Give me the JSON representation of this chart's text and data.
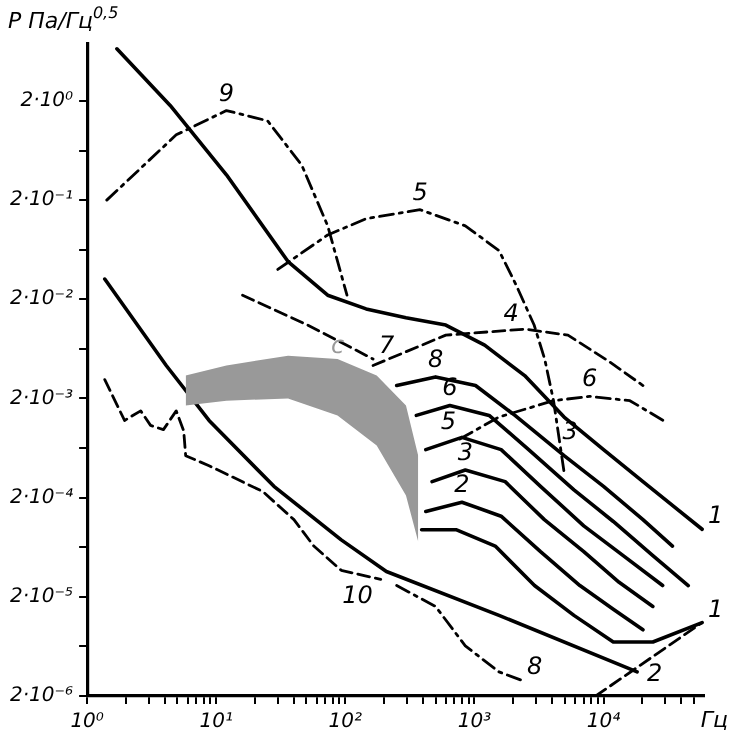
{
  "chart_data": {
    "type": "line",
    "xlabel": "Гц",
    "ylabel": "Р Па/Гц$^{0,5}$",
    "log": "xy",
    "xlim": [
      1,
      60000
    ],
    "ylim": [
      2e-06,
      7.5
    ],
    "xticks": [
      {
        "value": 1,
        "label": "10⁰"
      },
      {
        "value": 2,
        "label": null
      },
      {
        "value": 3,
        "label": null
      },
      {
        "value": 4,
        "label": null
      },
      {
        "value": 5,
        "label": null
      },
      {
        "value": 6,
        "label": null
      },
      {
        "value": 7,
        "label": null
      },
      {
        "value": 8,
        "label": null
      },
      {
        "value": 9,
        "label": null
      },
      {
        "value": 10,
        "label": "10¹"
      },
      {
        "value": 20,
        "label": null
      },
      {
        "value": 30,
        "label": null
      },
      {
        "value": 40,
        "label": null
      },
      {
        "value": 50,
        "label": null
      },
      {
        "value": 60,
        "label": null
      },
      {
        "value": 70,
        "label": null
      },
      {
        "value": 80,
        "label": null
      },
      {
        "value": 90,
        "label": null
      },
      {
        "value": 100,
        "label": "10²"
      },
      {
        "value": 200,
        "label": null
      },
      {
        "value": 300,
        "label": null
      },
      {
        "value": 400,
        "label": null
      },
      {
        "value": 500,
        "label": null
      },
      {
        "value": 600,
        "label": null
      },
      {
        "value": 700,
        "label": null
      },
      {
        "value": 800,
        "label": null
      },
      {
        "value": 900,
        "label": null
      },
      {
        "value": 1000,
        "label": "10³"
      },
      {
        "value": 2000,
        "label": null
      },
      {
        "value": 3000,
        "label": null
      },
      {
        "value": 4000,
        "label": null
      },
      {
        "value": 5000,
        "label": null
      },
      {
        "value": 6000,
        "label": null
      },
      {
        "value": 7000,
        "label": null
      },
      {
        "value": 8000,
        "label": null
      },
      {
        "value": 9000,
        "label": null
      },
      {
        "value": 10000,
        "label": "10⁴"
      },
      {
        "value": 20000,
        "label": null
      },
      {
        "value": 30000,
        "label": null
      },
      {
        "value": 40000,
        "label": null
      },
      {
        "value": 50000,
        "label": null
      }
    ],
    "yticks": [
      {
        "value": 2,
        "label": "2·10⁰"
      },
      {
        "value": 0.632,
        "label": null
      },
      {
        "value": 0.2,
        "label": "2·10⁻¹"
      },
      {
        "value": 0.0632,
        "label": null
      },
      {
        "value": 0.02,
        "label": "2·10⁻²"
      },
      {
        "value": 0.00632,
        "label": null
      },
      {
        "value": 0.002,
        "label": "2·10⁻³"
      },
      {
        "value": 0.000632,
        "label": null
      },
      {
        "value": 0.0002,
        "label": "2·10⁻⁴"
      },
      {
        "value": 6.32e-05,
        "label": null
      },
      {
        "value": 2e-05,
        "label": "2·10⁻⁵"
      },
      {
        "value": 6.32e-06,
        "label": null
      },
      {
        "value": 2e-06,
        "label": "2·10⁻⁶"
      }
    ],
    "annotations": [
      {
        "text": "3",
        "x": 5500,
        "y": 0.00093
      }
    ],
    "series": [
      {
        "name": "1",
        "color": "#000000",
        "line_style": "solid",
        "x": [
          1.7,
          4.4,
          12,
          36,
          73,
          145,
          295,
          600,
          1200,
          2450,
          4950,
          10000,
          20200,
          58000
        ],
        "values": [
          6.7,
          1.8,
          0.36,
          0.048,
          0.022,
          0.016,
          0.013,
          0.011,
          0.0069,
          0.0034,
          0.0013,
          0.00061,
          0.00029,
          9.6e-05
        ]
      },
      {
        "name": "9",
        "color": "#000000",
        "line_style": "dashdot",
        "x": [
          1.42,
          4.9,
          12,
          25,
          46,
          73,
          103
        ],
        "values": [
          0.2,
          0.91,
          1.6,
          1.26,
          0.45,
          0.11,
          0.022
        ]
      },
      {
        "name": "5",
        "color": "#000000",
        "line_style": "dashdot",
        "x": [
          30,
          73,
          145,
          380,
          850,
          1550,
          2100,
          2900,
          3500,
          4100,
          4950
        ],
        "values": [
          0.04,
          0.089,
          0.13,
          0.16,
          0.11,
          0.062,
          0.028,
          0.011,
          0.005,
          0.0019,
          0.00036
        ]
      },
      {
        "name": "7",
        "color": "#000000",
        "line_style": "dashed",
        "x": [
          16,
          51,
          164
        ],
        "values": [
          0.022,
          0.011,
          0.005
        ]
      },
      {
        "name": "4",
        "color": "#000000",
        "line_style": "dashed",
        "x": [
          164,
          600,
          2450,
          5300,
          11100,
          20200
        ],
        "values": [
          0.0043,
          0.0087,
          0.01,
          0.0087,
          0.0047,
          0.0027
        ]
      },
      {
        "name": "6",
        "color": "#000000",
        "line_style": "dashdot",
        "x": [
          770,
          1550,
          4100,
          7800,
          16000,
          29000
        ],
        "values": [
          0.00078,
          0.0013,
          0.0019,
          0.0021,
          0.0019,
          0.0012
        ]
      },
      {
        "name": "c",
        "type": "area",
        "color": "#999999",
        "x": [
          5.8,
          12,
          36,
          87,
          175,
          295,
          367
        ],
        "values": [
          null,
          null,
          null,
          null,
          null,
          null,
          null
        ],
        "upper": [
          0.0034,
          0.0043,
          0.0054,
          0.005,
          0.0034,
          0.0017,
          0.00053
        ],
        "lower": [
          0.0017,
          0.0019,
          0.002,
          0.00135,
          0.00067,
          0.00021,
          7.2e-05
        ]
      },
      {
        "name": "8",
        "color": "#000000",
        "line_style": "solid",
        "x": [
          250,
          500,
          1020,
          2060,
          4950,
          10000,
          20200,
          34200
        ],
        "values": [
          0.0027,
          0.0033,
          0.0027,
          0.00135,
          0.00053,
          0.00026,
          0.00012,
          6.5e-05
        ]
      },
      {
        "name": "6",
        "color": "#000000",
        "line_style": "solid",
        "x": [
          355,
          645,
          1300,
          2630,
          5900,
          11900,
          24100,
          45300
        ],
        "values": [
          0.00135,
          0.0017,
          0.00135,
          0.00061,
          0.00024,
          0.000115,
          5.2e-05,
          2.6e-05
        ]
      },
      {
        "name": "5",
        "color": "#000000",
        "line_style": "solid",
        "x": [
          420,
          800,
          1610,
          3250,
          7030,
          14200,
          28700
        ],
        "values": [
          0.00061,
          0.00081,
          0.00061,
          0.00026,
          0.000104,
          5.2e-05,
          2.6e-05
        ]
      },
      {
        "name": "3",
        "color": "#000000",
        "line_style": "solid",
        "x": [
          470,
          850,
          1730,
          3480,
          7030,
          13200,
          24100
        ],
        "values": [
          0.00029,
          0.00038,
          0.00029,
          0.00012,
          5.7e-05,
          2.8e-05,
          1.6e-05
        ]
      },
      {
        "name": "2",
        "color": "#000000",
        "line_style": "solid",
        "x": [
          420,
          800,
          1610,
          3250,
          6560,
          11900,
          20200
        ],
        "values": [
          0.000145,
          0.00018,
          0.00013,
          5.7e-05,
          2.6e-05,
          1.5e-05,
          9.3e-06
        ]
      },
      {
        "name": "1",
        "color": "#000000",
        "line_style": "solid",
        "x": [
          390,
          720,
          1450,
          2920,
          5900,
          11900,
          24100,
          58000
        ],
        "values": [
          9.5e-05,
          9.5e-05,
          6.5e-05,
          2.6e-05,
          1.3e-05,
          7e-06,
          7e-06,
          1.1e-05
        ]
      },
      {
        "name": "2",
        "color": "#000000",
        "line_style": "solid",
        "x": [
          1.37,
          4.1,
          8.8,
          28,
          93,
          208,
          1550,
          18200
        ],
        "values": [
          0.032,
          0.0043,
          0.0012,
          0.00026,
          7.5e-05,
          3.6e-05,
          1.3e-05,
          3.5e-06
        ]
      },
      {
        "name": "10",
        "color": "#000000",
        "line_style": "dashed",
        "x": [
          1.37,
          1.95,
          2.6,
          3.1,
          3.9,
          4.9,
          5.6,
          5.8,
          8.8,
          23,
          40,
          57,
          93,
          188
        ],
        "values": [
          0.0031,
          0.0012,
          0.0015,
          0.00107,
          0.00097,
          0.0015,
          0.00094,
          0.00053,
          0.00042,
          0.00023,
          0.00012,
          6.5e-05,
          3.7e-05,
          3e-05
        ]
      },
      {
        "name": "8",
        "color": "#000000",
        "line_style": "dashdot",
        "x": [
          250,
          500,
          850,
          1550,
          2290
        ],
        "values": [
          2.6e-05,
          1.6e-05,
          6.4e-06,
          3.5e-06,
          2.9e-06
        ]
      },
      {
        "color": "#000000",
        "line_style": "dashed",
        "x": [
          8700,
          58000
        ],
        "values": [
          2e-06,
          1.1e-05
        ]
      }
    ]
  }
}
